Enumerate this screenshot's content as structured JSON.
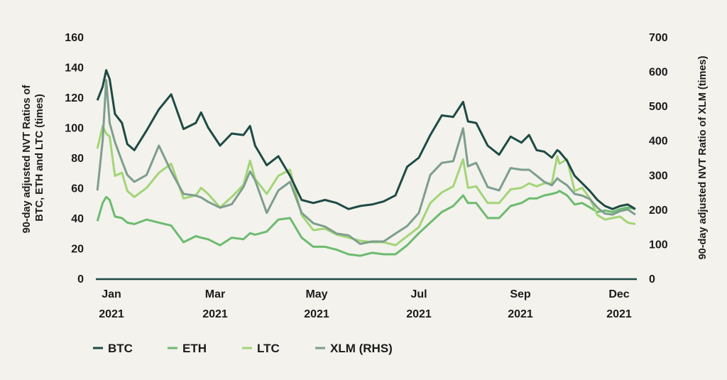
{
  "chart_data": {
    "type": "line",
    "title": "",
    "ylabel_left": [
      "90-day adjusted NVT Ratios of",
      "BTC, ETH and LTC (times)"
    ],
    "ylabel_right": "90-day adjusted NVT Ratio of XLM (times)",
    "ylim_left": [
      0,
      160
    ],
    "ylim_right": [
      0,
      700
    ],
    "yticks_left": [
      "0",
      "20",
      "40",
      "60",
      "80",
      "100",
      "120",
      "140",
      "160"
    ],
    "yticks_right": [
      "0",
      "100",
      "200",
      "300",
      "400",
      "500",
      "600",
      "700"
    ],
    "xticks": [
      {
        "month": "Jan",
        "year": "2021",
        "date": "2021-01-01"
      },
      {
        "month": "Mar",
        "year": "2021",
        "date": "2021-03-01"
      },
      {
        "month": "May",
        "year": "2021",
        "date": "2021-05-01"
      },
      {
        "month": "Jul",
        "year": "2021",
        "date": "2021-07-01"
      },
      {
        "month": "Sep",
        "year": "2021",
        "date": "2021-09-01"
      },
      {
        "month": "Dec",
        "year": "2021",
        "date": "2021-12-01"
      }
    ],
    "grid": false,
    "legend_position": "bottom-left",
    "x": [
      "2020-12-24",
      "2020-12-27",
      "2020-12-29",
      "2020-12-31",
      "2021-01-03",
      "2021-01-07",
      "2021-01-10",
      "2021-01-14",
      "2021-01-21",
      "2021-01-28",
      "2021-02-04",
      "2021-02-11",
      "2021-02-18",
      "2021-02-21",
      "2021-02-25",
      "2021-03-04",
      "2021-03-11",
      "2021-03-18",
      "2021-03-22",
      "2021-03-25",
      "2021-04-01",
      "2021-04-08",
      "2021-04-15",
      "2021-04-22",
      "2021-04-29",
      "2021-05-06",
      "2021-05-13",
      "2021-05-20",
      "2021-05-27",
      "2021-06-03",
      "2021-06-10",
      "2021-06-17",
      "2021-06-24",
      "2021-07-01",
      "2021-07-08",
      "2021-07-15",
      "2021-07-22",
      "2021-07-28",
      "2021-07-31",
      "2021-08-05",
      "2021-08-12",
      "2021-08-19",
      "2021-08-26",
      "2021-09-02",
      "2021-09-09",
      "2021-09-16",
      "2021-09-23",
      "2021-09-30",
      "2021-10-05",
      "2021-10-07",
      "2021-10-14",
      "2021-10-21",
      "2021-10-28",
      "2021-11-04",
      "2021-11-11",
      "2021-11-18",
      "2021-11-25",
      "2021-12-02",
      "2021-12-09",
      "2021-12-16"
    ],
    "series": [
      {
        "name": "ETH",
        "axis": "left",
        "color": "#6cbb6f",
        "values": [
          38,
          50,
          54,
          52,
          41,
          40,
          37,
          36,
          39,
          37,
          35,
          24,
          28,
          27,
          26,
          22,
          27,
          26,
          30,
          29,
          31,
          39,
          40,
          27,
          21,
          21,
          19,
          16,
          15,
          17,
          16,
          16,
          22,
          30,
          37,
          44,
          48,
          55,
          50,
          50,
          40,
          40,
          48,
          50,
          53,
          53,
          55,
          56,
          57,
          58,
          55,
          49,
          50,
          47,
          44,
          45,
          44,
          46,
          47,
          46
        ]
      },
      {
        "name": "LTC",
        "axis": "left",
        "color": "#a3d576",
        "values": [
          86,
          101,
          96,
          94,
          68,
          70,
          58,
          54,
          60,
          70,
          76,
          53,
          55,
          60,
          56,
          47,
          54,
          62,
          78,
          66,
          56,
          68,
          72,
          42,
          32,
          33,
          29,
          27,
          25,
          24,
          24,
          22,
          28,
          34,
          50,
          57,
          61,
          79,
          60,
          61,
          50,
          50,
          59,
          60,
          63,
          61,
          63,
          63,
          81,
          76,
          79,
          58,
          60,
          53,
          42,
          39,
          40,
          41,
          37,
          36
        ]
      },
      {
        "name": "XLM (RHS)",
        "axis": "right",
        "color": "#7d9e8d",
        "values": [
          255,
          400,
          575,
          450,
          395,
          340,
          300,
          280,
          300,
          385,
          310,
          245,
          240,
          235,
          222,
          205,
          215,
          265,
          310,
          285,
          190,
          255,
          280,
          190,
          160,
          150,
          130,
          125,
          100,
          107,
          107,
          130,
          152,
          190,
          300,
          335,
          340,
          435,
          325,
          335,
          265,
          255,
          320,
          315,
          315,
          298,
          280,
          270,
          290,
          285,
          270,
          245,
          240,
          230,
          205,
          188,
          185,
          195,
          200,
          185
        ]
      },
      {
        "name": "BTC",
        "axis": "left",
        "color": "#1d4a45",
        "values": [
          118,
          127,
          138,
          132,
          109,
          103,
          89,
          85,
          98,
          112,
          122,
          99,
          103,
          110,
          100,
          88,
          96,
          95,
          101,
          88,
          75,
          81,
          68,
          52,
          50,
          52,
          50,
          46,
          48,
          49,
          51,
          55,
          74,
          80,
          95,
          108,
          107,
          117,
          104,
          103,
          88,
          82,
          94,
          90,
          95,
          85,
          84,
          80,
          85,
          84,
          78,
          68,
          63,
          58,
          52,
          48,
          46,
          48,
          49,
          46
        ]
      }
    ],
    "legend": [
      {
        "label": "BTC",
        "color": "#1d4a45"
      },
      {
        "label": "ETH",
        "color": "#6cbb6f"
      },
      {
        "label": "LTC",
        "color": "#a3d576"
      },
      {
        "label": "XLM (RHS)",
        "color": "#7d9e8d"
      }
    ],
    "axis_color": "#1d4a45"
  }
}
